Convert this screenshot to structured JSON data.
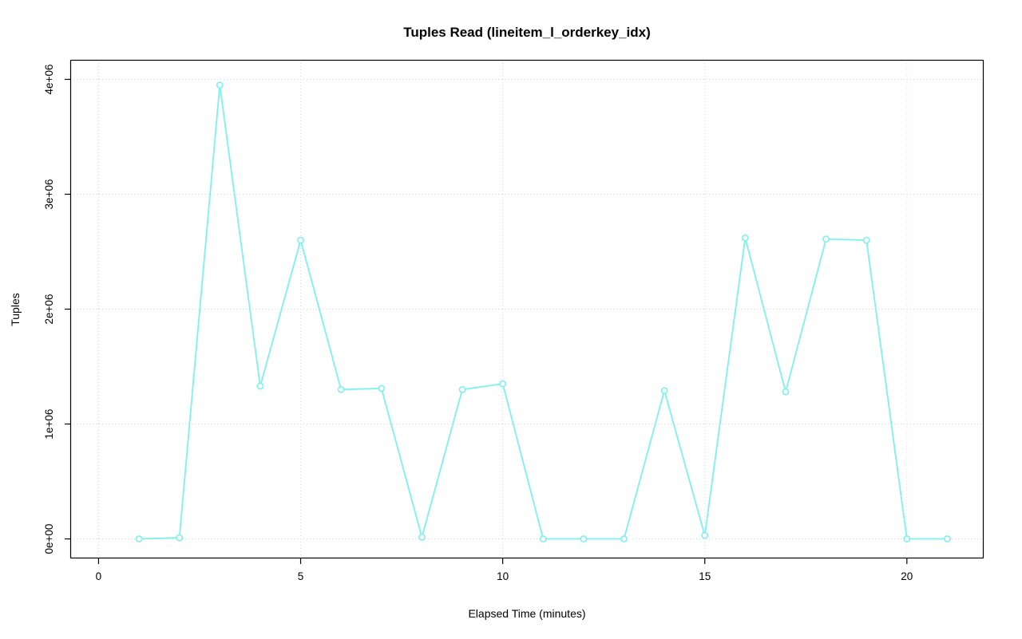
{
  "chart_data": {
    "type": "line",
    "title": "Tuples Read (lineitem_l_orderkey_idx)",
    "xlabel": "Elapsed Time (minutes)",
    "ylabel": "Tuples",
    "x": [
      1,
      2,
      3,
      4,
      5,
      6,
      7,
      8,
      9,
      10,
      11,
      12,
      13,
      14,
      15,
      16,
      17,
      18,
      19,
      20,
      21
    ],
    "values": [
      0,
      10000,
      3950000,
      1330000,
      2600000,
      1300000,
      1310000,
      15000,
      1300000,
      1350000,
      0,
      0,
      0,
      1290000,
      30000,
      2620000,
      1280000,
      2610000,
      2600000,
      0,
      0
    ],
    "xlim": [
      -0.7,
      21.9
    ],
    "ylim": [
      -170000,
      4170000
    ],
    "xticks": [
      0,
      5,
      10,
      15,
      20
    ],
    "xtick_labels": [
      "0",
      "5",
      "10",
      "15",
      "20"
    ],
    "yticks": [
      0,
      1000000,
      2000000,
      3000000,
      4000000
    ],
    "ytick_labels": [
      "0e+00",
      "1e+06",
      "2e+06",
      "3e+06",
      "4e+06"
    ],
    "grid": true,
    "legend": "none",
    "series_name": "tuples-read",
    "series_color": "#7DF0F0",
    "marker": "open-circle",
    "marker_fill": "#ffffff",
    "grid_color": "#d6d6d6",
    "axis_color": "#000000",
    "tick_label_color": "#000000",
    "background": "#ffffff"
  }
}
